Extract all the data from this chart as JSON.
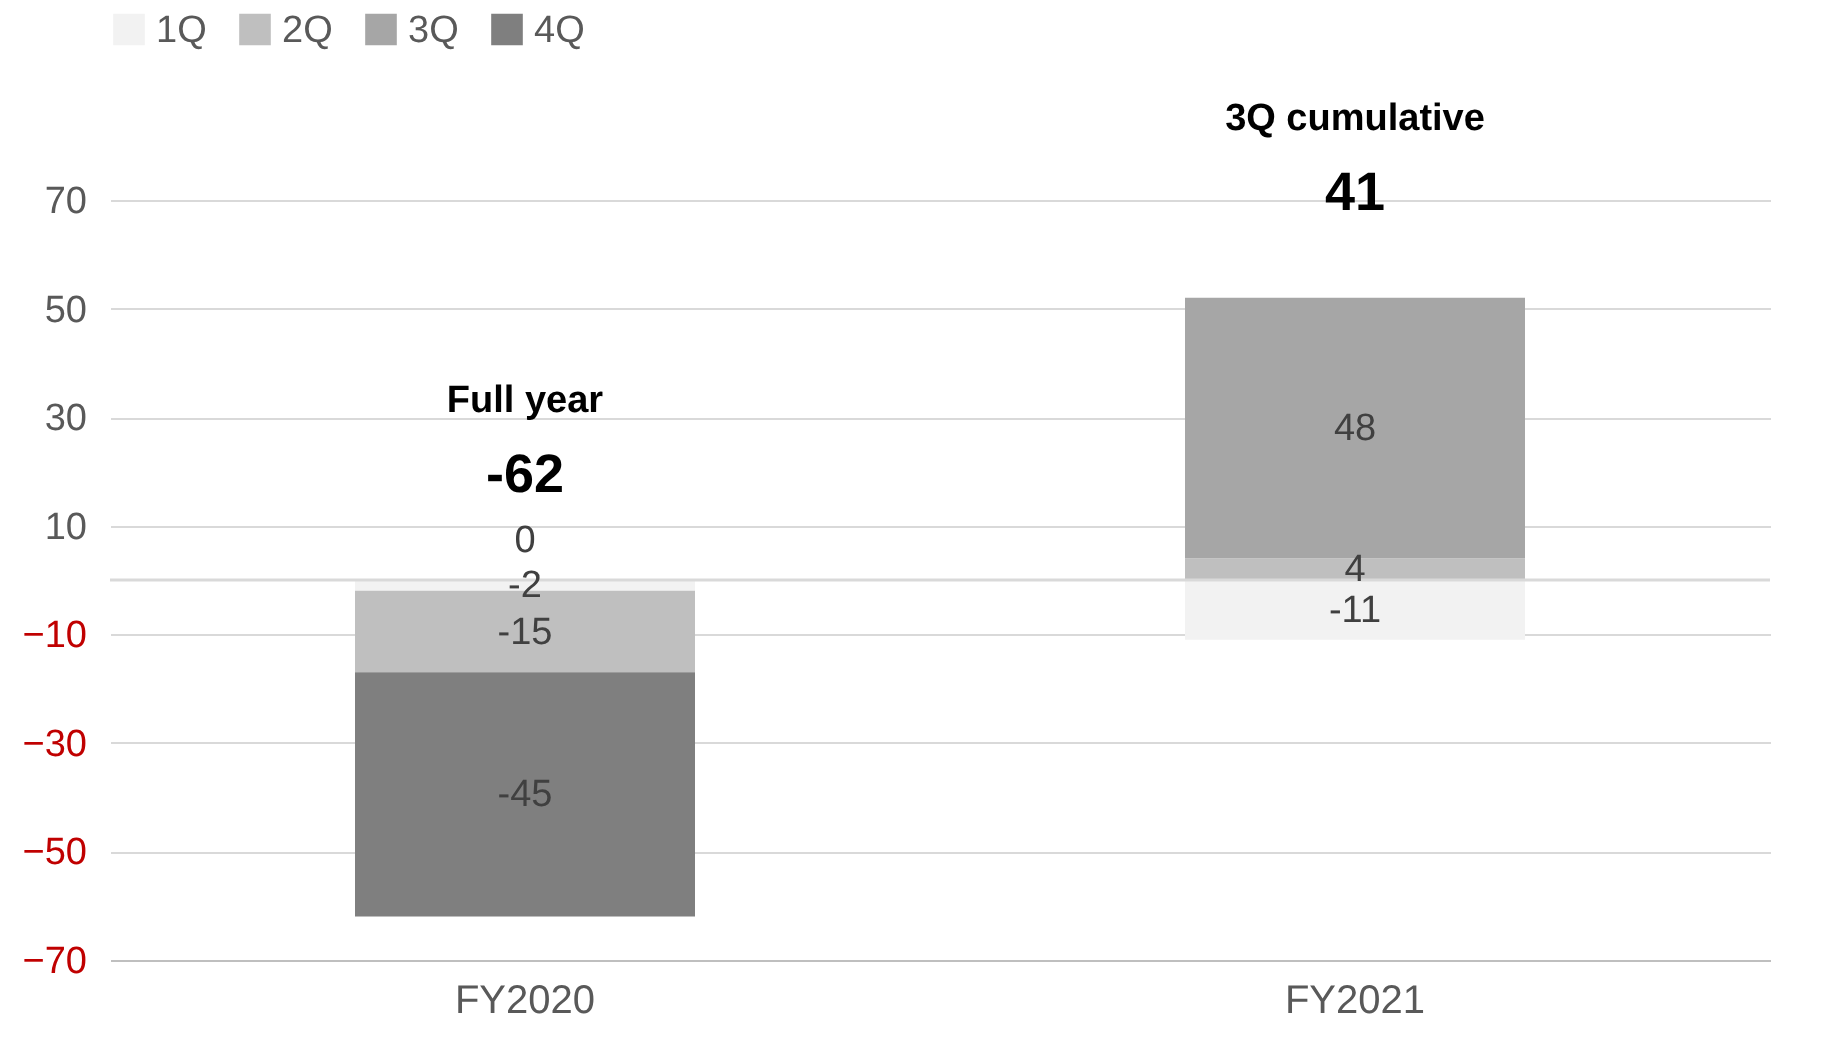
{
  "chart_data": {
    "type": "bar",
    "stacked": true,
    "categories": [
      "FY2020",
      "FY2021"
    ],
    "series": [
      {
        "name": "1Q",
        "color": "#f2f2f2",
        "values": [
          -2,
          -11
        ]
      },
      {
        "name": "2Q",
        "color": "#bfbfbf",
        "values": [
          -15,
          4
        ]
      },
      {
        "name": "3Q",
        "color": "#a6a6a6",
        "values": [
          0,
          48
        ]
      },
      {
        "name": "4Q",
        "color": "#7f7f7f",
        "values": [
          -45,
          null
        ]
      }
    ],
    "ylim": [
      -70,
      70
    ],
    "yticks": [
      -70,
      -50,
      -30,
      -10,
      10,
      30,
      50,
      70
    ],
    "grid": "y",
    "legend": "top",
    "data_labels": true,
    "totals": [
      "-62",
      "41"
    ],
    "annotations": [
      "Full year",
      "3Q cumulative"
    ],
    "ref_lines": [
      {
        "axis": "y",
        "value": 0
      }
    ]
  }
}
